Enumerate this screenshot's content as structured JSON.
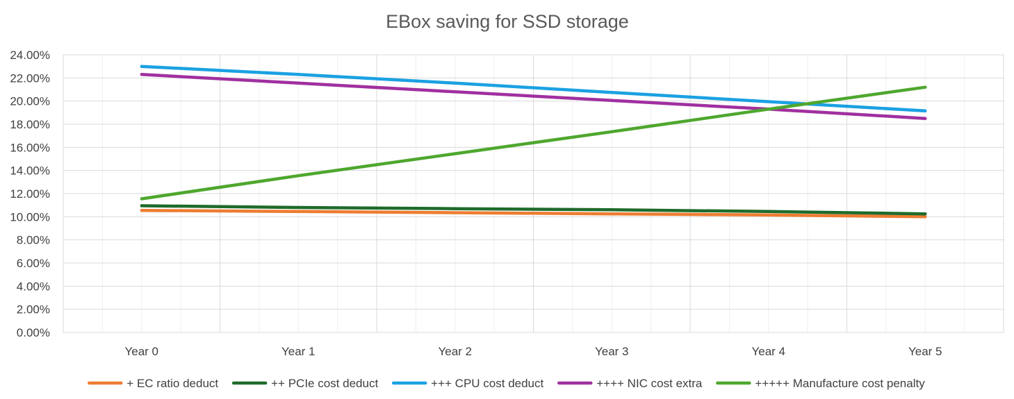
{
  "chart_data": {
    "type": "line",
    "title": "EBox saving for SSD  storage",
    "xlabel": "",
    "ylabel": "",
    "categories": [
      "Year 0",
      "Year 1",
      "Year 2",
      "Year 3",
      "Year 4",
      "Year 5"
    ],
    "yticks": [
      "0.00%",
      "2.00%",
      "4.00%",
      "6.00%",
      "8.00%",
      "10.00%",
      "12.00%",
      "14.00%",
      "16.00%",
      "18.00%",
      "20.00%",
      "22.00%",
      "24.00%"
    ],
    "ylim": [
      0,
      24
    ],
    "grid": true,
    "legend_position": "bottom",
    "series": [
      {
        "name": "+ EC ratio deduct",
        "color": "#ED7D31",
        "values": [
          10.55,
          10.45,
          10.35,
          10.25,
          10.15,
          10.0
        ]
      },
      {
        "name": "++ PCIe cost deduct",
        "color": "#1E6B2B",
        "values": [
          10.95,
          10.8,
          10.7,
          10.6,
          10.45,
          10.25
        ]
      },
      {
        "name": "+++ CPU cost deduct",
        "color": "#1BA1E2",
        "values": [
          23.0,
          22.3,
          21.55,
          20.75,
          19.95,
          19.15
        ]
      },
      {
        "name": "++++ NIC cost extra",
        "color": "#A0309F",
        "values": [
          22.3,
          21.55,
          20.8,
          20.05,
          19.3,
          18.5
        ]
      },
      {
        "name": "+++++ Manufacture cost penalty",
        "color": "#4EA72E",
        "values": [
          11.55,
          13.55,
          15.45,
          17.35,
          19.3,
          21.2
        ]
      }
    ]
  }
}
